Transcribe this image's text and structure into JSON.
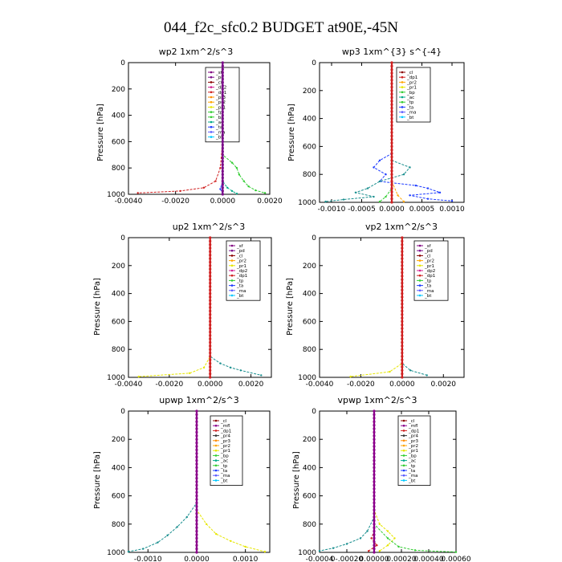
{
  "figure": {
    "title": "044_f2c_sfc0.2  BUDGET at90E,-45N"
  },
  "colors": {
    "_sf": "#800080",
    "_pd": "#7b0d8a",
    "_cl": "#8b0000",
    "_dp2": "#d02090",
    "_dp1": "#d02020",
    "_pr3": "#ff8c00",
    "_pr2": "#ffa500",
    "_pr1": "#e6e600",
    "_tp": "#32cd32",
    "_bp": "#32cd32",
    "_ac": "#00aa88",
    "_ta": "#1e3cff",
    "_ma": "#5b5bff",
    "_bt": "#00c8ff",
    "_mfl": "#8b008b",
    "_dp4": "#ff1493"
  },
  "chart_data": [
    {
      "type": "line",
      "title": "wp2  1xm^2/s^3",
      "ylabel": "Pressure [hPa]",
      "xlim": [
        -0.004,
        0.002
      ],
      "ylim": [
        1000,
        0
      ],
      "xticks": [
        -0.004,
        -0.002,
        0.0,
        0.002
      ],
      "xtick_labels": [
        "-0.0040",
        "-0.0020",
        "0.0000",
        "0.0020"
      ],
      "yticks": [
        0,
        200,
        400,
        600,
        800,
        1000
      ],
      "legend": [
        "_sf",
        "_pd",
        "_cl",
        "_dp2",
        "_dp1",
        "_pr3",
        "_pr2",
        "_pr1",
        "_tp",
        "_bp",
        "_ac",
        "_ta",
        "_ma",
        "_bt"
      ],
      "series": [
        {
          "name": "_dp1",
          "color": "#d02020",
          "points": [
            [
              0,
              0
            ],
            [
              0,
              600
            ],
            [
              -0.0001,
              800
            ],
            [
              -0.0003,
              900
            ],
            [
              -0.0008,
              950
            ],
            [
              -0.0018,
              975
            ],
            [
              -0.0036,
              990
            ]
          ]
        },
        {
          "name": "_tp",
          "color": "#32cd32",
          "points": [
            [
              0,
              0
            ],
            [
              0,
              700
            ],
            [
              0.0004,
              760
            ],
            [
              0.0006,
              800
            ],
            [
              0.0007,
              850
            ],
            [
              0.0009,
              900
            ],
            [
              0.0011,
              940
            ],
            [
              0.0014,
              970
            ],
            [
              0.0018,
              990
            ]
          ]
        },
        {
          "name": "_ac",
          "color": "#00aa88",
          "points": [
            [
              0,
              0
            ],
            [
              0,
              900
            ],
            [
              0.0002,
              950
            ],
            [
              0.0004,
              975
            ],
            [
              0.0006,
              995
            ]
          ]
        },
        {
          "name": "_ta",
          "color": "#1e3cff",
          "points": [
            [
              0,
              0
            ],
            [
              0,
              900
            ],
            [
              -0.0001,
              960
            ],
            [
              0,
              995
            ]
          ]
        },
        {
          "name": "_pd",
          "color": "#7b0d8a",
          "points": [
            [
              0,
              0
            ],
            [
              0,
              1000
            ]
          ]
        }
      ]
    },
    {
      "type": "line",
      "title": "wp3  1xm^{3} s^{-4}",
      "ylabel": "Pressure [hPa]",
      "xlim": [
        -0.0012,
        0.0012
      ],
      "ylim": [
        1000,
        0
      ],
      "xticks": [
        -0.001,
        -0.0005,
        0.0,
        0.0005,
        0.001
      ],
      "xtick_labels": [
        "-0.0010",
        "-0.0005",
        "0.0000",
        "0.0005",
        "0.0010"
      ],
      "yticks": [
        0,
        200,
        400,
        600,
        800,
        1000
      ],
      "legend": [
        "_cl",
        "_dp1",
        "_pr2",
        "_pr1",
        "_bp",
        "_ac",
        "_tp",
        "_ta",
        "_ma",
        "_bt"
      ],
      "series": [
        {
          "name": "_ta",
          "color": "#1e3cff",
          "points": [
            [
              0,
              0
            ],
            [
              0,
              650
            ],
            [
              -0.0002,
              700
            ],
            [
              -0.0003,
              750
            ],
            [
              -0.0001,
              800
            ],
            [
              -0.0002,
              850
            ],
            [
              0.0004,
              880
            ],
            [
              0.0006,
              900
            ],
            [
              0.0008,
              930
            ],
            [
              0.0003,
              950
            ],
            [
              0.0006,
              975
            ],
            [
              0.001,
              990
            ]
          ]
        },
        {
          "name": "_tp",
          "color": "#1a8f8f",
          "points": [
            [
              0,
              0
            ],
            [
              0,
              700
            ],
            [
              0.0003,
              750
            ],
            [
              0.0002,
              800
            ],
            [
              -0.0002,
              850
            ],
            [
              -0.0004,
              900
            ],
            [
              -0.0006,
              930
            ],
            [
              -0.0003,
              960
            ],
            [
              -0.0008,
              980
            ],
            [
              -0.0011,
              995
            ]
          ]
        },
        {
          "name": "_pr2",
          "color": "#ffa500",
          "points": [
            [
              0,
              0
            ],
            [
              0,
              850
            ],
            [
              0.0001,
              950
            ],
            [
              0.0002,
              995
            ]
          ]
        },
        {
          "name": "_ac",
          "color": "#32cd32",
          "points": [
            [
              0,
              0
            ],
            [
              0,
              900
            ],
            [
              -0.0001,
              960
            ],
            [
              -0.0002,
              995
            ]
          ]
        },
        {
          "name": "_dp1",
          "color": "#d02020",
          "points": [
            [
              0,
              0
            ],
            [
              0,
              1000
            ]
          ]
        }
      ]
    },
    {
      "type": "line",
      "title": "up2  1xm^2/s^3",
      "ylabel": "Pressure [hPa]",
      "xlim": [
        -0.004,
        0.003
      ],
      "ylim": [
        1000,
        0
      ],
      "xticks": [
        -0.004,
        -0.002,
        0.0,
        0.002
      ],
      "xtick_labels": [
        "-0.0040",
        "-0.0020",
        "0.0000",
        "0.0020"
      ],
      "yticks": [
        0,
        200,
        400,
        600,
        800,
        1000
      ],
      "legend": [
        "_sf",
        "_pd",
        "_cl",
        "_pr2",
        "_pr1",
        "_dp2",
        "_dp1",
        "_tp",
        "_ta",
        "_ma",
        "_bt"
      ],
      "series": [
        {
          "name": "_ta",
          "color": "#1a8f8f",
          "points": [
            [
              0,
              0
            ],
            [
              0,
              850
            ],
            [
              0.0005,
              900
            ],
            [
              0.001,
              930
            ],
            [
              0.0015,
              950
            ],
            [
              0.0025,
              985
            ]
          ]
        },
        {
          "name": "_pr1",
          "color": "#e6e600",
          "points": [
            [
              0,
              0
            ],
            [
              0,
              850
            ],
            [
              -0.0003,
              930
            ],
            [
              -0.001,
              970
            ],
            [
              -0.0035,
              995
            ]
          ]
        },
        {
          "name": "_dp1",
          "color": "#d02020",
          "points": [
            [
              0,
              0
            ],
            [
              0,
              1000
            ]
          ]
        }
      ]
    },
    {
      "type": "line",
      "title": "vp2  1xm^2/s^3",
      "ylabel": "Pressure [hPa]",
      "xlim": [
        -0.004,
        0.003
      ],
      "ylim": [
        1000,
        0
      ],
      "xticks": [
        -0.004,
        -0.002,
        0.0,
        0.002
      ],
      "xtick_labels": [
        "-0.0040",
        "-0.0020",
        "0.0000",
        "0.0020"
      ],
      "yticks": [
        0,
        200,
        400,
        600,
        800,
        1000
      ],
      "legend": [
        "_sf",
        "_pd",
        "_cl",
        "_pr2",
        "_pr1",
        "_dp2",
        "_dp1",
        "_tp",
        "_ta",
        "_ma",
        "_bt"
      ],
      "series": [
        {
          "name": "_ta",
          "color": "#1a8f8f",
          "points": [
            [
              0,
              0
            ],
            [
              0,
              900
            ],
            [
              0.0004,
              950
            ],
            [
              0.0012,
              985
            ]
          ]
        },
        {
          "name": "_pr1",
          "color": "#e6e600",
          "points": [
            [
              0,
              0
            ],
            [
              0,
              900
            ],
            [
              -0.0006,
              960
            ],
            [
              -0.0025,
              995
            ]
          ]
        },
        {
          "name": "_dp1",
          "color": "#d02020",
          "points": [
            [
              0,
              0
            ],
            [
              0,
              1000
            ]
          ]
        }
      ]
    },
    {
      "type": "line",
      "title": "upwp  1xm^2/s^3",
      "ylabel": "Pressure [hPa]",
      "xlim": [
        -0.0014,
        0.0015
      ],
      "ylim": [
        1000,
        0
      ],
      "xticks": [
        -0.001,
        0.0,
        0.001
      ],
      "xtick_labels": [
        "-0.0010",
        "0.0000",
        "0.0010"
      ],
      "yticks": [
        0,
        200,
        400,
        600,
        800,
        1000
      ],
      "legend": [
        "_cl",
        "_mfl",
        "_dp1",
        "_pr4",
        "_pr3",
        "_pr2",
        "_pr1",
        "_bp",
        "_ac",
        "_tp",
        "_ta",
        "_ma",
        "_bt"
      ],
      "series": [
        {
          "name": "_tp",
          "color": "#1a8f8f",
          "points": [
            [
              0,
              0
            ],
            [
              0,
              650
            ],
            [
              -0.0002,
              750
            ],
            [
              -0.0004,
              820
            ],
            [
              -0.0006,
              880
            ],
            [
              -0.0008,
              930
            ],
            [
              -0.0011,
              975
            ],
            [
              -0.0014,
              995
            ]
          ]
        },
        {
          "name": "_pr1",
          "color": "#e6e600",
          "points": [
            [
              0,
              0
            ],
            [
              0,
              700
            ],
            [
              0.0002,
              800
            ],
            [
              0.0004,
              870
            ],
            [
              0.0007,
              920
            ],
            [
              0.001,
              960
            ],
            [
              0.0014,
              995
            ]
          ]
        },
        {
          "name": "_mfl",
          "color": "#8b008b",
          "points": [
            [
              0,
              0
            ],
            [
              0,
              1000
            ]
          ]
        }
      ]
    },
    {
      "type": "line",
      "title": "vpwp  1xm^2/s^3",
      "ylabel": "Pressure [hPa]",
      "xlim": [
        -0.0004,
        0.0006
      ],
      "ylim": [
        1000,
        0
      ],
      "xticks": [
        -0.0004,
        -0.0002,
        0.0,
        0.0002,
        0.0004,
        0.0006
      ],
      "xtick_labels": [
        "-0.0004",
        "0-.00020",
        "0.00000",
        "0.00020",
        "0.00040",
        "0.00060"
      ],
      "yticks": [
        0,
        200,
        400,
        600,
        800,
        1000
      ],
      "legend": [
        "_cl",
        "_mfl",
        "_dp1",
        "_pr4",
        "_pr3",
        "_pr2",
        "_pr1",
        "_bp",
        "_ac",
        "_tp",
        "_ta",
        "_ma",
        "_bt"
      ],
      "series": [
        {
          "name": "_ta",
          "color": "#1a8f8f",
          "points": [
            [
              0,
              0
            ],
            [
              0,
              750
            ],
            [
              -5e-05,
              850
            ],
            [
              -0.0001,
              900
            ],
            [
              -0.0002,
              940
            ],
            [
              -0.0003,
              970
            ],
            [
              -0.0004,
              990
            ]
          ]
        },
        {
          "name": "_pr1",
          "color": "#e6e600",
          "points": [
            [
              0,
              0
            ],
            [
              0,
              700
            ],
            [
              4e-05,
              800
            ],
            [
              0.0001,
              850
            ],
            [
              0.00015,
              900
            ],
            [
              0.0001,
              950
            ],
            [
              4e-05,
              990
            ]
          ]
        },
        {
          "name": "_tp",
          "color": "#32cd32",
          "points": [
            [
              0,
              0
            ],
            [
              0,
              800
            ],
            [
              0.0001,
              900
            ],
            [
              0.00018,
              960
            ],
            [
              0.0003,
              985
            ],
            [
              0.0006,
              998
            ]
          ]
        },
        {
          "name": "_dp1",
          "color": "#d02020",
          "points": [
            [
              0,
              0
            ],
            [
              0,
              850
            ],
            [
              -2e-05,
              900
            ],
            [
              2e-05,
              950
            ],
            [
              -4e-05,
              990
            ]
          ]
        },
        {
          "name": "_mfl",
          "color": "#8b008b",
          "points": [
            [
              0,
              0
            ],
            [
              0,
              1000
            ]
          ]
        }
      ]
    }
  ]
}
